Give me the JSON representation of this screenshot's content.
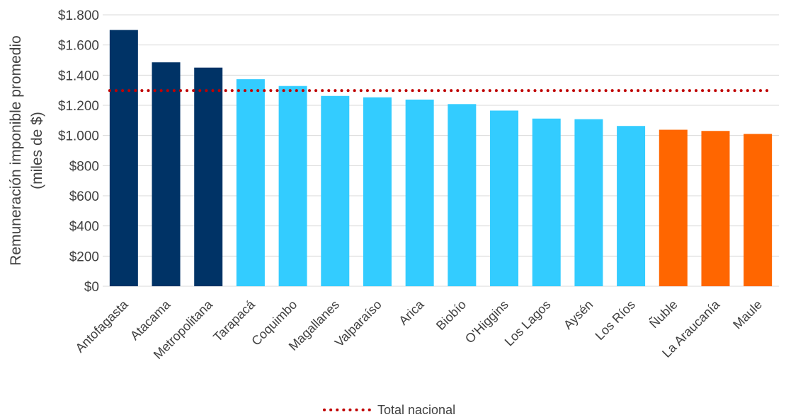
{
  "chart_data": {
    "type": "bar",
    "ylabel_line1": "Remuneración imponible promedio",
    "ylabel_line2": "(miles de $)",
    "ylim": [
      0,
      1800
    ],
    "yticks": [
      {
        "value": 0,
        "label": "$0"
      },
      {
        "value": 200,
        "label": "$200"
      },
      {
        "value": 400,
        "label": "$400"
      },
      {
        "value": 600,
        "label": "$600"
      },
      {
        "value": 800,
        "label": "$800"
      },
      {
        "value": 1000,
        "label": "$1.000"
      },
      {
        "value": 1200,
        "label": "$1.200"
      },
      {
        "value": 1400,
        "label": "$1.400"
      },
      {
        "value": 1600,
        "label": "$1.600"
      },
      {
        "value": 1800,
        "label": "$1.800"
      }
    ],
    "categories": [
      "Antofagasta",
      "Atacama",
      "Metropolitana",
      "Tarapacá",
      "Coquimbo",
      "Magallanes",
      "Valparaíso",
      "Arica",
      "Biobío",
      "O'Higgins",
      "Los Lagos",
      "Aysén",
      "Los Ríos",
      "Ñuble",
      "La Araucanía",
      "Maule"
    ],
    "values": [
      1700,
      1485,
      1450,
      1373,
      1328,
      1262,
      1253,
      1238,
      1208,
      1165,
      1112,
      1108,
      1063,
      1038,
      1030,
      1010
    ],
    "bar_colors": [
      "#003366",
      "#003366",
      "#003366",
      "#33CCFF",
      "#33CCFF",
      "#33CCFF",
      "#33CCFF",
      "#33CCFF",
      "#33CCFF",
      "#33CCFF",
      "#33CCFF",
      "#33CCFF",
      "#33CCFF",
      "#FF6600",
      "#FF6600",
      "#FF6600"
    ],
    "reference_line": {
      "name": "Total nacional",
      "value": 1298,
      "color": "#C00000",
      "style": "dotted"
    },
    "grid": true,
    "legend_position": "bottom"
  }
}
